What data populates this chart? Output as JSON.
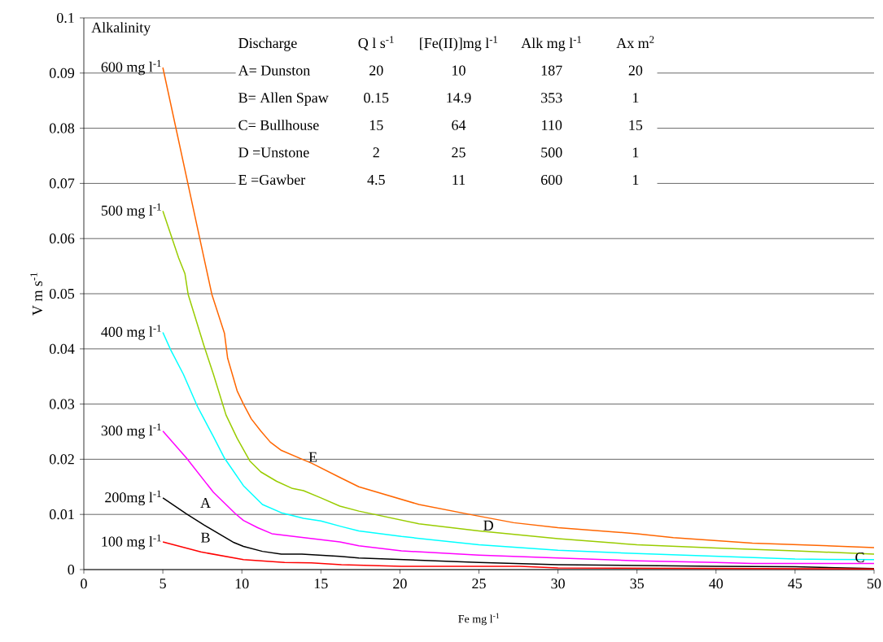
{
  "chart_data": {
    "type": "line",
    "xlabel": "Fe mg l$^{-1}$",
    "ylabel": "V m s$^{-1}$",
    "legend_title": "Alkalinity",
    "annotations": [
      "Discharge",
      "Q l s$^{-1}$",
      "[Fe(II)]mg l$^{-1}$",
      "Alk mg l$^{-1}$",
      "Ax m$^{2}$",
      "A= Dunston",
      "20",
      "10",
      "187",
      "20",
      "B= Allen Spaw",
      "0.15",
      "14.9",
      "353",
      "1",
      "C= Bullhouse",
      "15",
      "64",
      "110",
      "15",
      "D =Unstone",
      "2",
      "25",
      "500",
      "1",
      "E =Gawber",
      "4.5",
      "11",
      "600",
      "1",
      "A",
      "B",
      "C",
      "D",
      "E"
    ],
    "series": [
      {
        "name": "600 mg l$^{-1}$",
        "color": "#ff6600",
        "x": [
          5,
          7.6,
          8.1,
          8.9,
          9.1,
          9.7,
          10.1,
          10.6,
          11.2,
          11.8,
          12.5,
          13.9,
          14.4,
          16.2,
          17.4,
          21.2,
          24.6,
          27.2,
          30,
          35,
          37.3,
          42.3,
          50
        ],
        "values": [
          0.091,
          0.0565,
          0.0499,
          0.0428,
          0.0383,
          0.0324,
          0.03,
          0.0273,
          0.0251,
          0.0231,
          0.0216,
          0.0199,
          0.0193,
          0.0167,
          0.015,
          0.0118,
          0.0099,
          0.0085,
          0.0076,
          0.0065,
          0.0058,
          0.0048,
          0.004
        ]
      },
      {
        "name": "500 mg l$^{-1}$",
        "color": "#99cc00",
        "x": [
          5,
          6.0,
          6.4,
          6.6,
          7.6,
          8.2,
          9.0,
          9.7,
          10.5,
          11.2,
          12.2,
          13.2,
          13.9,
          15.0,
          16.2,
          17.4,
          21.2,
          25,
          30,
          35,
          40,
          45,
          50
        ],
        "values": [
          0.065,
          0.0565,
          0.0536,
          0.0499,
          0.0406,
          0.0354,
          0.028,
          0.0238,
          0.0197,
          0.0177,
          0.016,
          0.0147,
          0.0143,
          0.013,
          0.0115,
          0.0106,
          0.0083,
          0.007,
          0.0056,
          0.0045,
          0.0039,
          0.0034,
          0.0028
        ]
      },
      {
        "name": "400 mg l$^{-1}$",
        "color": "#00ffff",
        "x": [
          5,
          5.5,
          6.3,
          7.2,
          8.2,
          8.9,
          10.1,
          11.3,
          12.5,
          13.9,
          15.0,
          16.3,
          17.4,
          20.1,
          25,
          30,
          35,
          40,
          45,
          50
        ],
        "values": [
          0.043,
          0.0398,
          0.0354,
          0.0295,
          0.0241,
          0.0202,
          0.0152,
          0.0118,
          0.0103,
          0.0093,
          0.0088,
          0.0078,
          0.007,
          0.006,
          0.0045,
          0.0035,
          0.0029,
          0.0024,
          0.0019,
          0.0018
        ]
      },
      {
        "name": "300 mg l$^{-1}$",
        "color": "#ff00ff",
        "x": [
          5,
          6.5,
          8.2,
          9.6,
          10.1,
          11.0,
          11.9,
          13.6,
          16.2,
          17.4,
          20.1,
          25,
          30,
          35,
          40,
          42.3,
          50
        ],
        "values": [
          0.0251,
          0.0202,
          0.014,
          0.0101,
          0.0089,
          0.0076,
          0.0065,
          0.0059,
          0.005,
          0.0043,
          0.0034,
          0.0026,
          0.0021,
          0.0016,
          0.0013,
          0.0011,
          0.0011
        ]
      },
      {
        "name": "200mg l$^{-1}$",
        "color": "#000000",
        "x": [
          5,
          6.5,
          7.6,
          9.5,
          10.1,
          11.3,
          12.5,
          13.8,
          16.2,
          17.4,
          25,
          30,
          40,
          45,
          50
        ],
        "values": [
          0.013,
          0.0101,
          0.0081,
          0.0049,
          0.0042,
          0.0033,
          0.0028,
          0.0028,
          0.0024,
          0.0021,
          0.0013,
          0.0009,
          0.0006,
          0.0005,
          0.0002
        ]
      },
      {
        "name": "100 mg l$^{-1}$",
        "color": "#ff0000",
        "x": [
          5,
          7.4,
          10.1,
          12.7,
          14.4,
          16.3,
          20.1,
          27.6,
          30,
          50
        ],
        "values": [
          0.005,
          0.0032,
          0.0018,
          0.0013,
          0.0012,
          0.0009,
          0.0006,
          0.0006,
          0.0003,
          0.0001
        ]
      }
    ],
    "xlim": [
      0,
      50
    ],
    "ylim": [
      0,
      0.1
    ],
    "xticks": [
      0,
      5,
      10,
      15,
      20,
      25,
      30,
      35,
      40,
      45,
      50
    ],
    "yticks": [
      0,
      0.01,
      0.02,
      0.03,
      0.04,
      0.05,
      0.06,
      0.07,
      0.08,
      0.09,
      0.1
    ],
    "grid": "y"
  }
}
